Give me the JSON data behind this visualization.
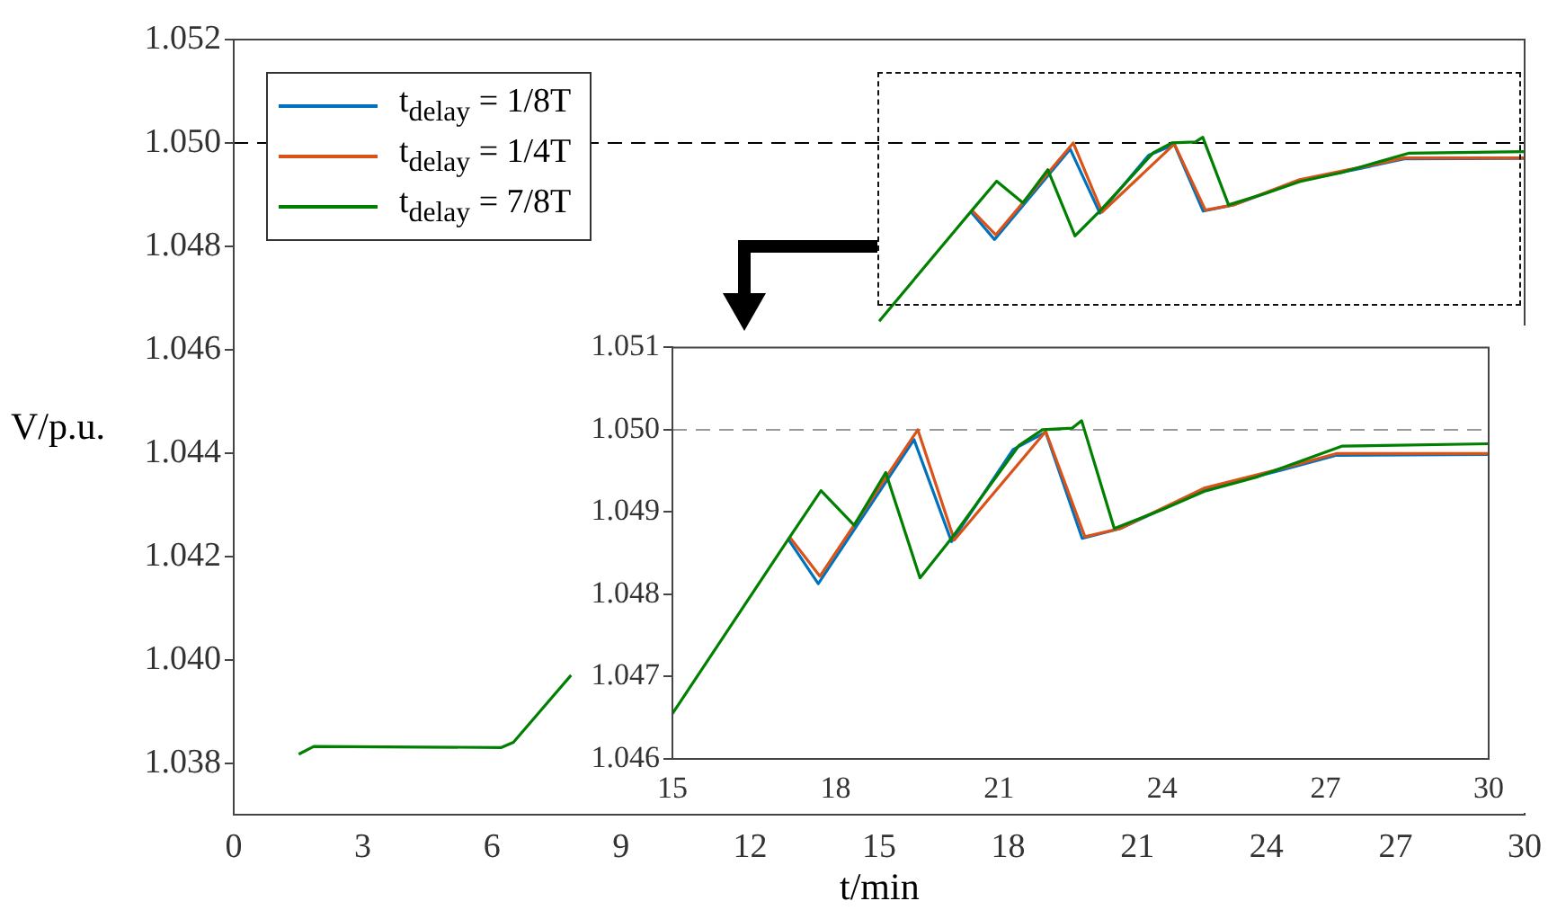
{
  "chart_data": [
    {
      "type": "line",
      "xlabel": "t/min",
      "ylabel": "V/p.u.",
      "legend": "top left",
      "grid": false,
      "xlim": [
        0,
        30
      ],
      "xticks": [
        0,
        3,
        6,
        9,
        12,
        15,
        18,
        21,
        24,
        27,
        30
      ],
      "ylim": [
        1.037,
        1.052
      ],
      "yticks": [
        {
          "value": 1.038,
          "label": "1.038"
        },
        {
          "value": 1.04,
          "label": "1.040"
        },
        {
          "value": 1.042,
          "label": "1.042"
        },
        {
          "value": 1.044,
          "label": "1.044"
        },
        {
          "value": 1.046,
          "label": "1.046"
        },
        {
          "value": 1.048,
          "label": "1.048"
        },
        {
          "value": 1.05,
          "label": "1.050"
        },
        {
          "value": 1.052,
          "label": "1.052"
        }
      ],
      "ref_lines": [
        {
          "axis": "y",
          "value": 1.05,
          "color": "#000000",
          "line_style": "dashed"
        }
      ],
      "series": [
        {
          "name": "t$_{delay}$ = 1/8T",
          "color": "#0072bd",
          "x": [
            17.13,
            17.68,
            19.44,
            20.13,
            21.26,
            21.86,
            22.53,
            23.23,
            24.77,
            26.2,
            27.2,
            30
          ],
          "values": [
            1.04867,
            1.04813,
            1.04988,
            1.04864,
            1.04976,
            1.04997,
            1.04868,
            1.0488,
            1.04927,
            1.04951,
            1.04969,
            1.0497
          ]
        },
        {
          "name": "t$_{delay}$ = 1/4T",
          "color": "#d95319",
          "x": [
            17.16,
            17.71,
            19.51,
            20.18,
            21.86,
            22.58,
            23.23,
            24.77,
            26.2,
            27.2,
            30
          ],
          "values": [
            1.04869,
            1.04822,
            1.05,
            1.04866,
            1.04998,
            1.0487,
            1.0488,
            1.04929,
            1.04953,
            1.04971,
            1.04971
          ]
        },
        {
          "name": "t$_{delay}$ = 7/8T",
          "color": "#008000",
          "x": [
            1.51,
            1.86,
            6.22,
            6.5,
            7.84,
            11,
            15,
            17.13,
            17.73,
            18.34,
            18.92,
            19.55,
            20.15,
            21.37,
            21.8,
            22.35,
            22.52,
            23.12,
            24.0,
            24.77,
            25.76,
            27.3,
            30
          ],
          "values": [
            1.03817,
            1.03832,
            1.0383,
            1.0384,
            1.0397,
            null,
            1.04655,
            1.04867,
            1.04926,
            1.04884,
            1.04948,
            1.0482,
            1.0487,
            1.04981,
            1.05,
            1.05002,
            1.05011,
            1.0488,
            1.04903,
            1.04925,
            1.04943,
            1.0498,
            1.04983
          ]
        }
      ]
    },
    {
      "type": "line",
      "grid": false,
      "xlim": [
        15,
        30
      ],
      "xticks": [
        15,
        18,
        21,
        24,
        27,
        30
      ],
      "ylim": [
        1.046,
        1.051
      ],
      "yticks": [
        {
          "value": 1.046,
          "label": "1.046"
        },
        {
          "value": 1.047,
          "label": "1.047"
        },
        {
          "value": 1.048,
          "label": "1.048"
        },
        {
          "value": 1.049,
          "label": "1.049"
        },
        {
          "value": 1.05,
          "label": "1.050"
        },
        {
          "value": 1.051,
          "label": "1.051"
        }
      ],
      "ref_lines": [
        {
          "axis": "y",
          "value": 1.05,
          "color": "#999999",
          "line_style": "dashed"
        }
      ],
      "series": [
        {
          "color": "#0072bd",
          "x": [
            17.13,
            17.68,
            19.44,
            20.13,
            21.26,
            21.86,
            22.53,
            23.23,
            24.77,
            26.2,
            27.2,
            30
          ],
          "values": [
            1.04867,
            1.04813,
            1.04988,
            1.04864,
            1.04976,
            1.04997,
            1.04868,
            1.0488,
            1.04927,
            1.04951,
            1.04969,
            1.0497
          ]
        },
        {
          "color": "#d95319",
          "x": [
            17.16,
            17.71,
            19.51,
            20.18,
            21.86,
            22.58,
            23.23,
            24.77,
            26.2,
            27.2,
            30
          ],
          "values": [
            1.04869,
            1.04822,
            1.05,
            1.04866,
            1.04998,
            1.0487,
            1.0488,
            1.04929,
            1.04953,
            1.04971,
            1.04971
          ]
        },
        {
          "color": "#008000",
          "x": [
            15,
            17.13,
            17.73,
            18.34,
            18.92,
            19.55,
            20.15,
            21.37,
            21.8,
            22.35,
            22.52,
            23.12,
            24.0,
            24.77,
            25.76,
            27.3,
            30
          ],
          "values": [
            1.04655,
            1.04867,
            1.04926,
            1.04884,
            1.04948,
            1.0482,
            1.0487,
            1.04981,
            1.05,
            1.05002,
            1.05011,
            1.0488,
            1.04903,
            1.04925,
            1.04943,
            1.0498,
            1.04983
          ]
        }
      ]
    }
  ]
}
